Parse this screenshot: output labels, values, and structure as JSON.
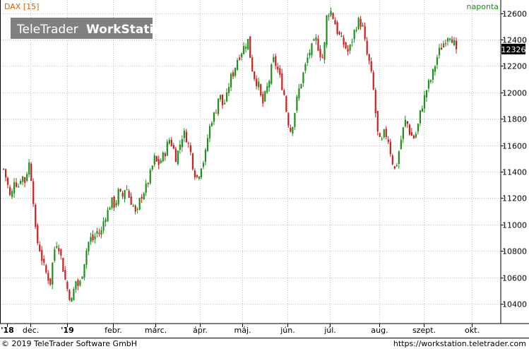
{
  "chart_data": {
    "type": "candlestick",
    "title": "DAX [15]",
    "interval_label": "naponta",
    "watermark": {
      "brand": "TeleTrader",
      "product": "WorkStation"
    },
    "last_price": 12326,
    "ylim": [
      10250,
      12700
    ],
    "yticks": [
      10400,
      10600,
      10800,
      11000,
      11200,
      11400,
      11600,
      11800,
      12000,
      12200,
      12400,
      12600
    ],
    "xticks": [
      "'18",
      "dec.",
      "'19",
      "febr.",
      "márc.",
      "ápr.",
      "máj.",
      "jún.",
      "júl.",
      "aug.",
      "szept.",
      "okt."
    ],
    "grid": true,
    "colors": {
      "up": "#1f8f1f",
      "down": "#cc1f1f",
      "title": "#cc6600",
      "interval": "#1f8f1f",
      "grid": "#bfbfbf",
      "badge": "#000000"
    },
    "series_sampled_daily_close": [
      11420,
      11320,
      11180,
      11350,
      11280,
      11380,
      11320,
      11480,
      11300,
      10900,
      10820,
      10700,
      10620,
      10560,
      10800,
      10880,
      10750,
      10600,
      10480,
      10420,
      10580,
      10520,
      10650,
      10800,
      10900,
      10880,
      10950,
      10920,
      11050,
      11100,
      11180,
      11140,
      11250,
      11200,
      11300,
      11200,
      11150,
      11050,
      11200,
      11250,
      11300,
      11400,
      11500,
      11450,
      11500,
      11550,
      11650,
      11600,
      11500,
      11600,
      11700,
      11650,
      11550,
      11400,
      11350,
      11450,
      11500,
      11700,
      11800,
      11850,
      12000,
      11900,
      11950,
      12100,
      12150,
      12250,
      12300,
      12350,
      12400,
      12200,
      12100,
      12050,
      11900,
      12000,
      12100,
      12250,
      12200,
      12100,
      12000,
      11800,
      11700,
      11850,
      12000,
      12100,
      12200,
      12300,
      12350,
      12400,
      12300,
      12250,
      12600,
      12620,
      12550,
      12450,
      12400,
      12350,
      12300,
      12400,
      12500,
      12550,
      12480,
      12300,
      12200,
      12000,
      11700,
      11600,
      11700,
      11650,
      11500,
      11400,
      11550,
      11700,
      11800,
      11700,
      11650,
      11700,
      11850,
      11950,
      12050,
      12100,
      12200,
      12300,
      12350,
      12400,
      12450,
      12400,
      12326
    ]
  },
  "footer": {
    "copyright": "© 2019 TeleTrader Software GmbH",
    "url": "https://workstation.teletrader.com"
  }
}
